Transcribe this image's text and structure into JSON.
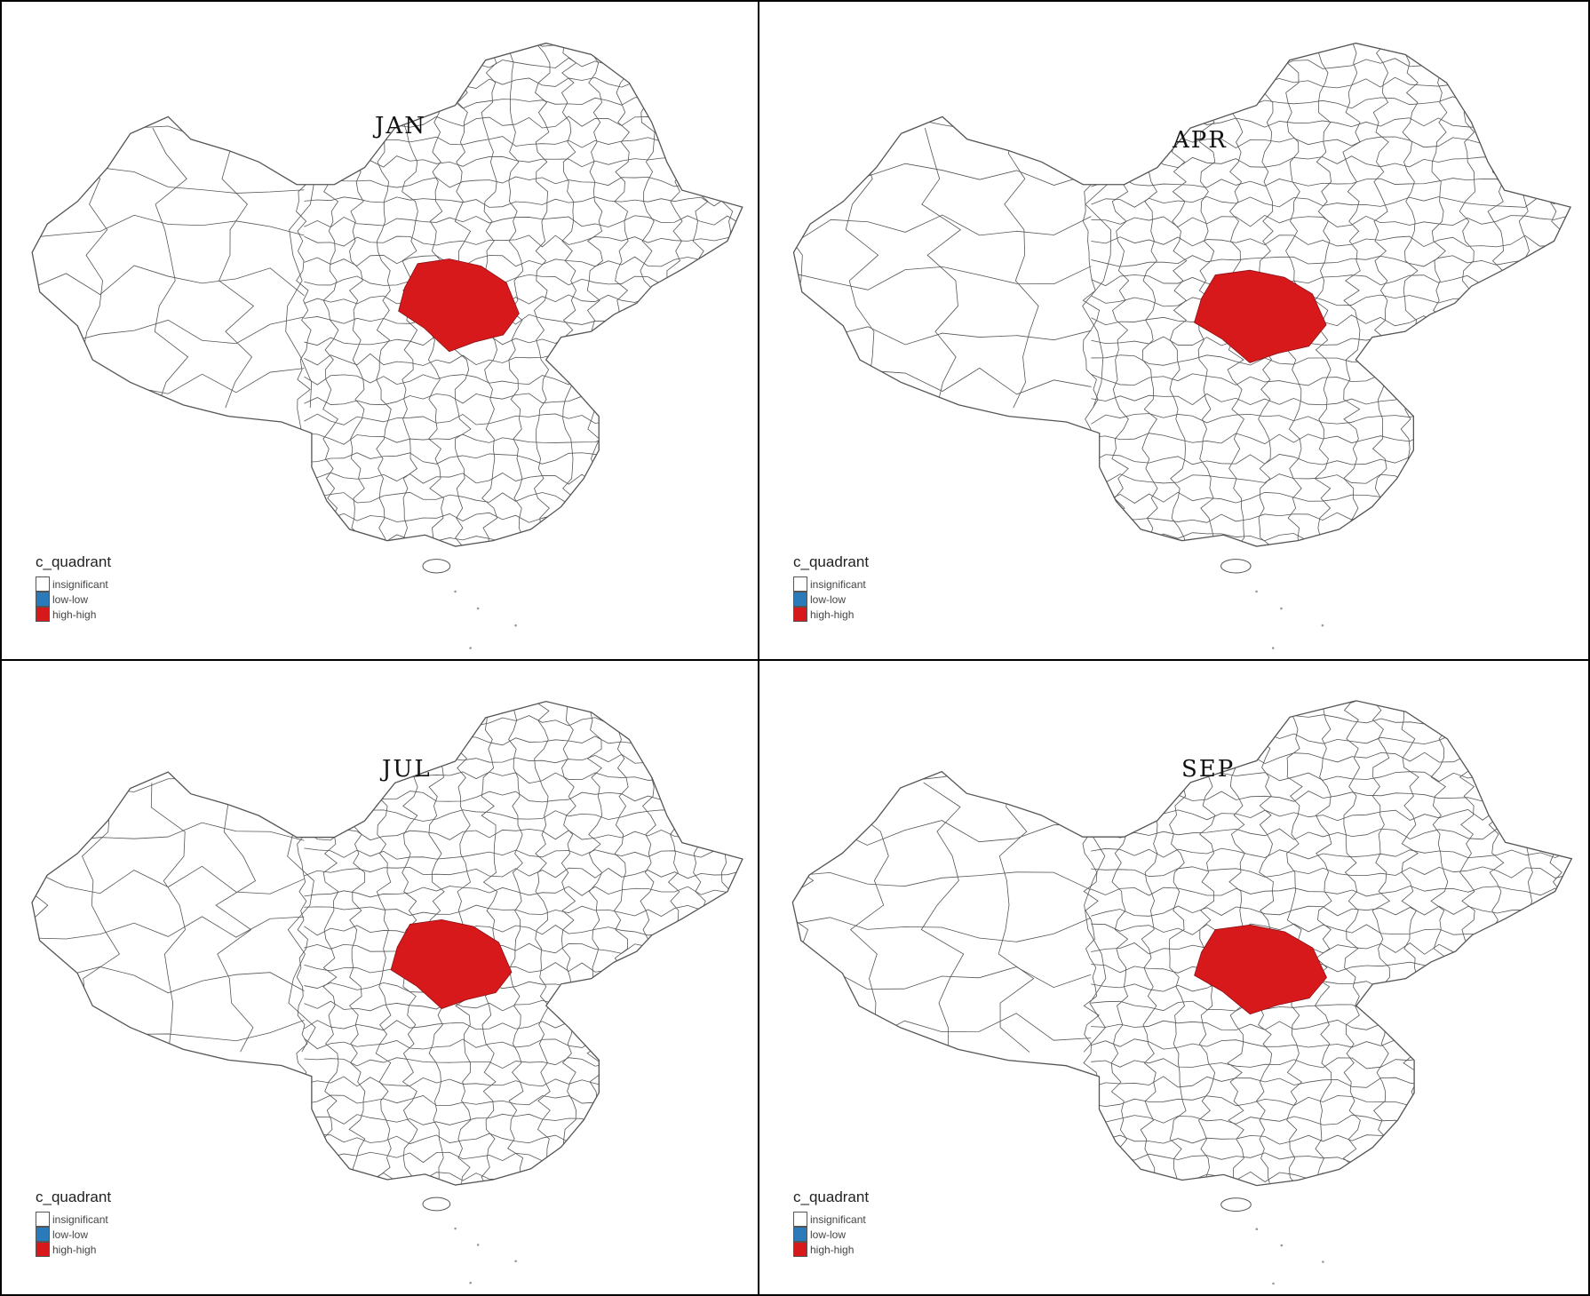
{
  "panels": [
    {
      "title": "JAN"
    },
    {
      "title": "APR"
    },
    {
      "title": "JUL"
    },
    {
      "title": "SEP"
    }
  ],
  "legend": {
    "title": "c_quadrant",
    "items": [
      {
        "label": "insignificant",
        "color": "#ffffff"
      },
      {
        "label": "low-low",
        "color": "#2b7bba"
      },
      {
        "label": "high-high",
        "color": "#d7191c"
      }
    ]
  },
  "colors": {
    "boundary": "#555555",
    "cluster": "#d7191c"
  }
}
